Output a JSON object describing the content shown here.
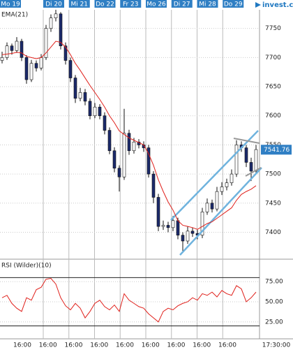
{
  "brand": "invest.ch",
  "days": [
    "Mo 19",
    "Di 20",
    "Mi 21",
    "Do 22",
    "Fr 23",
    "Mo 26",
    "Di 27",
    "Mi 28",
    "Do 29"
  ],
  "time_labels": [
    "16:00",
    "16:00",
    "16:00",
    "16:00",
    "16:00",
    "16:00",
    "16:00",
    "16:00",
    "16:00",
    "17:30:00"
  ],
  "chart_data": [
    {
      "type": "candlestick",
      "title": "EMA(21)",
      "ylim": [
        7355,
        7782
      ],
      "yticks": [
        7400,
        7450,
        7500,
        7550,
        7600,
        7650,
        7700,
        7750
      ],
      "grid": true,
      "up_color": "#ffffff",
      "down_color": "#1b2a6b",
      "last_price": 7541.76,
      "ohlc": [
        [
          7695,
          7710,
          7690,
          7700
        ],
        [
          7700,
          7726,
          7696,
          7720
        ],
        [
          7720,
          7724,
          7705,
          7712
        ],
        [
          7712,
          7735,
          7708,
          7728
        ],
        [
          7728,
          7732,
          7694,
          7700
        ],
        [
          7700,
          7704,
          7655,
          7662
        ],
        [
          7662,
          7696,
          7658,
          7690
        ],
        [
          7690,
          7695,
          7676,
          7682
        ],
        [
          7682,
          7706,
          7678,
          7700
        ],
        [
          7700,
          7756,
          7696,
          7750
        ],
        [
          7750,
          7774,
          7744,
          7768
        ],
        [
          7768,
          7782,
          7762,
          7775
        ],
        [
          7775,
          7778,
          7714,
          7720
        ],
        [
          7720,
          7726,
          7688,
          7695
        ],
        [
          7695,
          7700,
          7658,
          7665
        ],
        [
          7665,
          7670,
          7622,
          7630
        ],
        [
          7630,
          7648,
          7625,
          7640
        ],
        [
          7640,
          7646,
          7618,
          7625
        ],
        [
          7625,
          7630,
          7594,
          7600
        ],
        [
          7600,
          7622,
          7596,
          7615
        ],
        [
          7615,
          7620,
          7594,
          7600
        ],
        [
          7600,
          7606,
          7568,
          7575
        ],
        [
          7575,
          7580,
          7534,
          7540
        ],
        [
          7540,
          7546,
          7503,
          7510
        ],
        [
          7510,
          7515,
          7470,
          7495
        ],
        [
          7495,
          7612,
          7490,
          7570
        ],
        [
          7570,
          7576,
          7533,
          7540
        ],
        [
          7540,
          7562,
          7535,
          7555
        ],
        [
          7555,
          7560,
          7544,
          7550
        ],
        [
          7550,
          7556,
          7538,
          7545
        ],
        [
          7545,
          7550,
          7494,
          7500
        ],
        [
          7500,
          7505,
          7450,
          7460
        ],
        [
          7460,
          7466,
          7402,
          7410
        ],
        [
          7410,
          7420,
          7404,
          7412
        ],
        [
          7412,
          7418,
          7400,
          7408
        ],
        [
          7408,
          7428,
          7402,
          7420
        ],
        [
          7420,
          7425,
          7388,
          7395
        ],
        [
          7395,
          7400,
          7365,
          7385
        ],
        [
          7385,
          7410,
          7380,
          7402
        ],
        [
          7402,
          7408,
          7392,
          7398
        ],
        [
          7398,
          7404,
          7388,
          7395
        ],
        [
          7395,
          7442,
          7390,
          7435
        ],
        [
          7435,
          7458,
          7430,
          7450
        ],
        [
          7450,
          7456,
          7434,
          7440
        ],
        [
          7440,
          7478,
          7436,
          7470
        ],
        [
          7470,
          7486,
          7464,
          7478
        ],
        [
          7478,
          7492,
          7472,
          7485
        ],
        [
          7485,
          7508,
          7480,
          7500
        ],
        [
          7500,
          7558,
          7495,
          7550
        ],
        [
          7550,
          7556,
          7538,
          7545
        ],
        [
          7545,
          7550,
          7512,
          7520
        ],
        [
          7520,
          7528,
          7488,
          7505
        ],
        [
          7505,
          7550,
          7500,
          7542
        ]
      ],
      "series": [
        {
          "color": "#e0201b",
          "values": [
            7705,
            7706,
            7707,
            7709,
            7708,
            7702,
            7700,
            7698,
            7700,
            7708,
            7718,
            7728,
            7726,
            7718,
            7705,
            7690,
            7678,
            7665,
            7652,
            7640,
            7628,
            7615,
            7600,
            7588,
            7574,
            7568,
            7562,
            7558,
            7554,
            7550,
            7535,
            7515,
            7490,
            7470,
            7452,
            7438,
            7420,
            7412,
            7410,
            7408,
            7405,
            7410,
            7415,
            7418,
            7424,
            7430,
            7436,
            7442,
            7455,
            7465,
            7470,
            7474,
            7480
          ]
        }
      ]
    },
    {
      "type": "line",
      "title": "RSI (Wilder)(10)",
      "ylim": [
        4,
        102
      ],
      "yticks": [
        {
          "value": 25,
          "label": "25.00"
        },
        {
          "value": 50,
          "label": "50.00"
        },
        {
          "value": 75,
          "label": "75.00"
        }
      ],
      "levels": [
        80,
        20
      ],
      "series": [
        {
          "color": "#e0201b",
          "values": [
            55,
            58,
            48,
            42,
            38,
            55,
            52,
            65,
            68,
            78,
            79,
            72,
            55,
            45,
            40,
            48,
            42,
            30,
            38,
            48,
            52,
            44,
            40,
            46,
            38,
            60,
            52,
            48,
            44,
            42,
            35,
            30,
            25,
            38,
            42,
            40,
            45,
            48,
            50,
            55,
            52,
            60,
            58,
            62,
            56,
            64,
            60,
            58,
            70,
            66,
            50,
            55,
            62
          ]
        }
      ]
    }
  ]
}
